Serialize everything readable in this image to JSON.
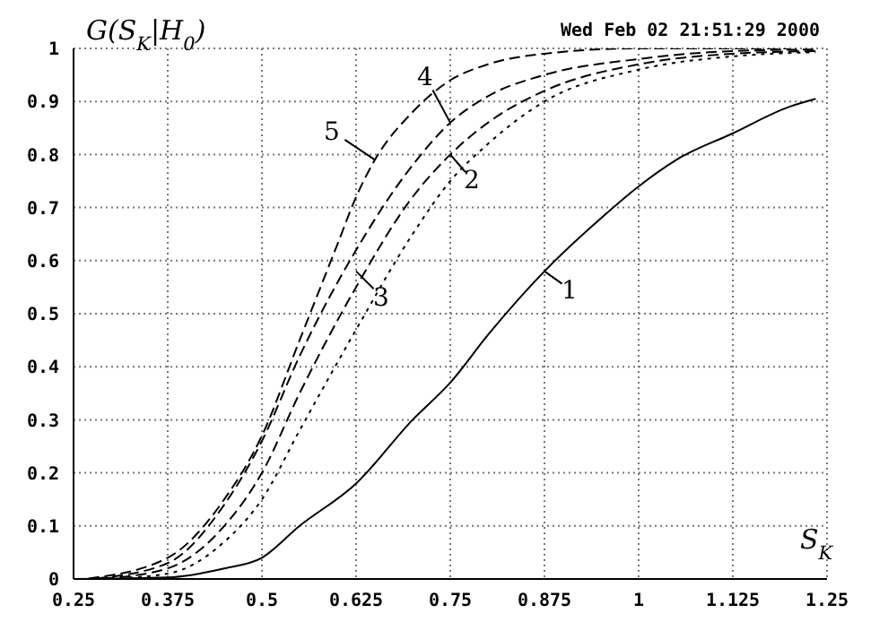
{
  "chart_data": {
    "type": "line",
    "ylabel": "G(S$_{K}$|H$_{0}$)",
    "xlabel": "S$_{K}$",
    "xlim": [
      0.25,
      1.25
    ],
    "xticks": [
      0.25,
      0.375,
      0.5,
      0.625,
      0.75,
      0.875,
      1,
      1.125,
      1.25
    ],
    "ylim": [
      0,
      1
    ],
    "yticks": [
      0,
      0.1,
      0.2,
      0.3,
      0.4,
      0.5,
      0.6,
      0.7,
      0.8,
      0.9,
      1
    ],
    "grid": true,
    "marker": "none",
    "series": [
      {
        "color": "#000000",
        "line_style": "solid",
        "x": [
          0.25,
          0.375,
          0.45,
          0.5,
          0.55,
          0.625,
          0.7,
          0.75,
          0.8,
          0.875,
          0.95,
          1,
          1.05,
          1.125,
          1.2,
          1.235
        ],
        "values": [
          0,
          0.003,
          0.02,
          0.04,
          0.1,
          0.18,
          0.3,
          0.37,
          0.46,
          0.58,
          0.68,
          0.74,
          0.79,
          0.84,
          0.89,
          0.905
        ]
      },
      {
        "color": "#000000",
        "line_style": "dotted",
        "x": [
          0.3,
          0.375,
          0.45,
          0.5,
          0.55,
          0.625,
          0.7,
          0.75,
          0.8,
          0.875,
          1,
          1.125,
          1.235
        ],
        "values": [
          0.001,
          0.01,
          0.07,
          0.15,
          0.28,
          0.47,
          0.65,
          0.75,
          0.82,
          0.9,
          0.96,
          0.985,
          0.993
        ]
      },
      {
        "color": "#000000",
        "line_style": "dashed",
        "x": [
          0.29,
          0.375,
          0.45,
          0.5,
          0.55,
          0.625,
          0.7,
          0.75,
          0.8,
          0.875,
          1,
          1.125,
          1.235
        ],
        "values": [
          0.001,
          0.02,
          0.1,
          0.2,
          0.35,
          0.55,
          0.72,
          0.8,
          0.86,
          0.92,
          0.97,
          0.99,
          0.995
        ]
      },
      {
        "color": "#000000",
        "line_style": "dashed",
        "x": [
          0.28,
          0.375,
          0.45,
          0.5,
          0.55,
          0.625,
          0.7,
          0.75,
          0.8,
          0.875,
          1,
          1.125,
          1.235
        ],
        "values": [
          0.001,
          0.03,
          0.14,
          0.26,
          0.42,
          0.62,
          0.78,
          0.86,
          0.91,
          0.95,
          0.98,
          0.995,
          0.998
        ]
      },
      {
        "color": "#000000",
        "line_style": "dashed",
        "x": [
          0.27,
          0.375,
          0.45,
          0.5,
          0.55,
          0.6,
          0.625,
          0.65,
          0.7,
          0.75,
          0.8,
          0.875,
          1,
          1.2
        ],
        "values": [
          0.001,
          0.04,
          0.15,
          0.27,
          0.45,
          0.63,
          0.72,
          0.79,
          0.88,
          0.94,
          0.97,
          0.99,
          1,
          1
        ]
      }
    ],
    "annotations": [
      "Wed Feb 02 21:51:29 2000",
      {
        "text": "1",
        "x": 0.875,
        "y": 0.58
      },
      {
        "text": "2",
        "x": 0.75,
        "y": 0.8
      },
      {
        "text": "3",
        "x": 0.625,
        "y": 0.58
      },
      {
        "text": "4",
        "x": 0.75,
        "y": 0.86
      },
      {
        "text": "5",
        "x": 0.65,
        "y": 0.79
      }
    ]
  }
}
